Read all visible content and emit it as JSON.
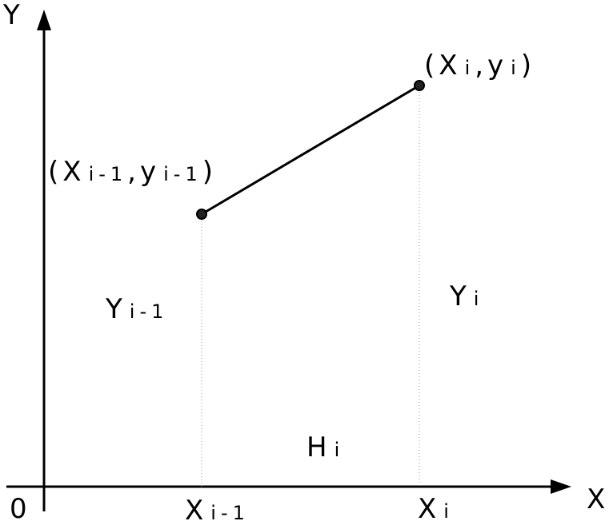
{
  "axes": {
    "y_label": "Y",
    "x_label": "X",
    "origin": "0"
  },
  "point_end_label": [
    "(X",
    "i",
    ",y",
    "i",
    ")"
  ],
  "point_start_label": [
    "(X",
    "i-1",
    ",y",
    "i-1",
    ")"
  ],
  "ordinate_start_label": [
    "Y",
    "i-1"
  ],
  "ordinate_end_label": [
    "Y",
    "i"
  ],
  "width_label": [
    "H",
    "i"
  ],
  "abscissa_start_label": [
    "X",
    "i-1"
  ],
  "abscissa_end_label": [
    "X",
    "i"
  ]
}
